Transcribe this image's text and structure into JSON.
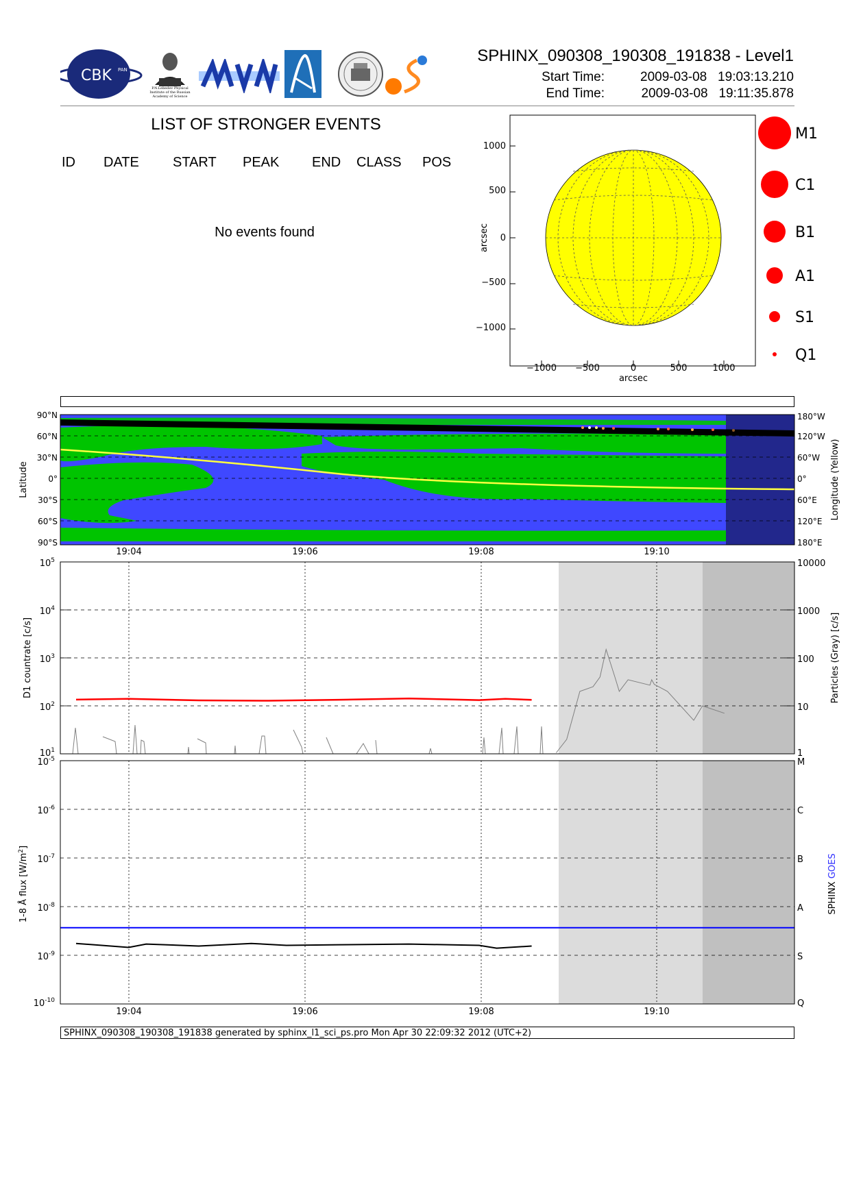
{
  "header": {
    "title": "SPHINX_090308_190308_191838 - Level1",
    "start_label": "Start Time:",
    "start_value": "2009-03-08   19:03:13.210",
    "end_label": "End Time:",
    "end_value": "2009-03-08   19:11:35.878",
    "logos": {
      "cbk_text": "CBK",
      "cbk_small": "PAN",
      "lebedev_caption": "P.N.Lebedev Physical Institute of the Russian Academy of Science"
    }
  },
  "events": {
    "title": "LIST OF STRONGER EVENTS",
    "columns": [
      "ID",
      "DATE",
      "START",
      "PEAK",
      "END",
      "CLASS",
      "POS"
    ],
    "empty_message": "No events found"
  },
  "sun_map": {
    "x_ticks": [
      "−1000",
      "−500",
      "0",
      "500",
      "1000"
    ],
    "y_ticks": [
      "1000",
      "500",
      "0",
      "−500",
      "−1000"
    ],
    "xlabel": "arcsec",
    "ylabel": "arcsec",
    "disk_color": "#ffff00",
    "legend": [
      "M1",
      "C1",
      "B1",
      "A1",
      "S1",
      "Q1"
    ]
  },
  "map_panel": {
    "lat_ticks": [
      "90°N",
      "60°N",
      "30°N",
      "0°",
      "30°S",
      "60°S",
      "90°S"
    ],
    "lon_ticks": [
      "180°W",
      "120°W",
      "60°W",
      "0°",
      "60°E",
      "120°E",
      "180°E"
    ],
    "ylabel_left": "Latitude",
    "ylabel_right": "Longitude (Yellow)",
    "x_ticks": [
      "19:04",
      "19:06",
      "19:08",
      "19:10"
    ]
  },
  "countrate_panel": {
    "ylabel_left": "D1 countrate [c/s]",
    "ylabel_right": "Particles (Gray) [c/s]",
    "left_ticks": [
      {
        "base": "10",
        "exp": "5"
      },
      {
        "base": "10",
        "exp": "4"
      },
      {
        "base": "10",
        "exp": "3"
      },
      {
        "base": "10",
        "exp": "2"
      },
      {
        "base": "10",
        "exp": "1"
      }
    ],
    "right_ticks": [
      "10000",
      "1000",
      "100",
      "10",
      "1"
    ]
  },
  "flux_panel": {
    "ylabel_left": "1-8 Å flux [W/m",
    "ylabel_left_sup": "2",
    "ylabel_left_end": "]",
    "left_ticks": [
      {
        "base": "10",
        "exp": "-5"
      },
      {
        "base": "10",
        "exp": "-6"
      },
      {
        "base": "10",
        "exp": "-7"
      },
      {
        "base": "10",
        "exp": "-8"
      },
      {
        "base": "10",
        "exp": "-9"
      },
      {
        "base": "10",
        "exp": "-10"
      }
    ],
    "right_ticks": [
      "M",
      "C",
      "B",
      "A",
      "S",
      "Q"
    ],
    "legend_sphinx": "SPHINX",
    "legend_goes": "GOES",
    "x_ticks": [
      "19:04",
      "19:06",
      "19:08",
      "19:10"
    ]
  },
  "footer": "SPHINX_090308_190308_191838 generated by sphinx_l1_sci_ps.pro Mon Apr 30 22:09:32 2012 (UTC+2)",
  "chart_data": [
    {
      "type": "line",
      "panel": "countrate",
      "x_unit": "minutes after 19:00",
      "xlim": [
        3.22,
        11.6
      ],
      "ylim": [
        10,
        100000
      ],
      "y_scale": "log",
      "grid": true,
      "series": [
        {
          "color": "#ff0000",
          "x": [
            3.4,
            4.0,
            4.8,
            5.6,
            6.4,
            7.2,
            8.0,
            8.3,
            8.6
          ],
          "y": [
            135,
            140,
            130,
            128,
            134,
            142,
            132,
            140,
            133
          ]
        }
      ]
    },
    {
      "type": "line",
      "panel": "particles",
      "x_unit": "minutes after 19:00",
      "y_scale": "log",
      "ylim": [
        1,
        10000
      ],
      "series": [
        {
          "color": "#808080",
          "x": [
            8.88,
            9.0,
            9.15,
            9.3,
            9.38,
            9.45,
            9.55,
            9.6,
            9.7,
            9.95,
            9.97,
            10.0,
            10.05,
            10.15,
            10.3,
            10.45,
            10.55,
            10.8
          ],
          "y": [
            1.05,
            2,
            20,
            25,
            40,
            150,
            40,
            20,
            35,
            27,
            35,
            28,
            25,
            20,
            10,
            5,
            10,
            7
          ]
        }
      ]
    },
    {
      "type": "line",
      "panel": "flux",
      "x_unit": "minutes after 19:00",
      "y_scale": "log",
      "ylim": [
        1e-10,
        1e-05
      ],
      "series": [
        {
          "color": "#000000",
          "x": [
            3.4,
            4.0,
            4.2,
            4.8,
            5.4,
            5.8,
            6.4,
            7.2,
            8.0,
            8.2,
            8.6
          ],
          "y": [
            1.75e-09,
            1.45e-09,
            1.7e-09,
            1.55e-09,
            1.75e-09,
            1.6e-09,
            1.65e-09,
            1.7e-09,
            1.6e-09,
            1.4e-09,
            1.55e-09
          ]
        },
        {
          "color": "#0000ff",
          "x": [
            3.22,
            11.6
          ],
          "y": [
            3.7e-09,
            3.7e-09
          ]
        }
      ]
    }
  ]
}
